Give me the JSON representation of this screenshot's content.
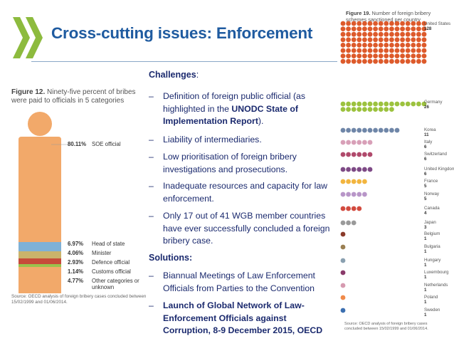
{
  "slide": {
    "title": "Cross-cutting issues: Enforcement"
  },
  "figure12": {
    "label": "Figure 12.",
    "caption": "Ninety-five percent of bribes were paid to officials in 5 categories",
    "categories": [
      {
        "pct": "80.11%",
        "label": "SOE official",
        "color": "#f2a96a"
      },
      {
        "pct": "6.97%",
        "label": "Head of state",
        "color": "#7fb1d6"
      },
      {
        "pct": "4.06%",
        "label": "Minister",
        "color": "#cab36b"
      },
      {
        "pct": "2.93%",
        "label": "Defence official",
        "color": "#c64b3a"
      },
      {
        "pct": "1.14%",
        "label": "Customs official",
        "color": "#9ac24d"
      },
      {
        "pct": "4.77%",
        "label": "Other categories or unknown",
        "color": "#f2a96a"
      }
    ],
    "source": "Source: OECD analysis of foreign bribery cases concluded between 15/02/1999 and 01/06/2014."
  },
  "text": {
    "challenges_heading": "Challenges",
    "challenges_colon": ":",
    "challenges": [
      {
        "before": "Definition of foreign public official (as highlighted in the ",
        "bold": "UNODC State of Implementation Report",
        "after": ")."
      },
      {
        "before": "Liability of intermediaries.",
        "bold": "",
        "after": ""
      },
      {
        "before": "Low prioritisation of foreign bribery investigations and prosecutions.",
        "bold": "",
        "after": ""
      },
      {
        "before": "Inadequate resources and capacity for law enforcement.",
        "bold": "",
        "after": ""
      },
      {
        "before": "Only 17 out of 41 WGB member countries have ever successfully concluded a foreign bribery case.",
        "bold": "",
        "after": ""
      }
    ],
    "solutions_heading": "Solutions:",
    "solutions": [
      {
        "before": "Biannual Meetings of Law Enforcement Officials from Parties to the Convention",
        "bold": "",
        "after": ""
      },
      {
        "before": "",
        "bold": "Launch of Global Network of Law-Enforcement Officials against Corruption, 8-9 December 2015, OECD",
        "after": ""
      }
    ],
    "dash": "–"
  },
  "figure19": {
    "label": "Figure 19.",
    "caption": "Number of foreign bribery schemes sanctioned per country",
    "countries": [
      {
        "name": "United States",
        "count": "128",
        "value": 128,
        "color": "#dd5a2b"
      },
      {
        "name": "Germany",
        "count": "26",
        "value": 26,
        "color": "#9cc23e"
      },
      {
        "name": "Korea",
        "count": "11",
        "value": 11,
        "color": "#6f86a8"
      },
      {
        "name": "Italy",
        "count": "6",
        "value": 6,
        "color": "#d8a0b8"
      },
      {
        "name": "Switzerland",
        "count": "6",
        "value": 6,
        "color": "#b04a6c"
      },
      {
        "name": "United Kingdom",
        "count": "6",
        "value": 6,
        "color": "#7e4a86"
      },
      {
        "name": "France",
        "count": "5",
        "value": 5,
        "color": "#f2b53f"
      },
      {
        "name": "Norway",
        "count": "5",
        "value": 5,
        "color": "#b896c8"
      },
      {
        "name": "Canada",
        "count": "4",
        "value": 4,
        "color": "#d24b3f"
      },
      {
        "name": "Japan",
        "count": "3",
        "value": 3,
        "color": "#9a9a9a"
      },
      {
        "name": "Belgium",
        "count": "1",
        "value": 1,
        "color": "#8a3a2a"
      },
      {
        "name": "Bulgaria",
        "count": "1",
        "value": 1,
        "color": "#9a7f52"
      },
      {
        "name": "Hungary",
        "count": "1",
        "value": 1,
        "color": "#8aa0b0"
      },
      {
        "name": "Luxembourg",
        "count": "1",
        "value": 1,
        "color": "#8a3a6a"
      },
      {
        "name": "Netherlands",
        "count": "1",
        "value": 1,
        "color": "#d69ab0"
      },
      {
        "name": "Poland",
        "count": "1",
        "value": 1,
        "color": "#f08a4a"
      },
      {
        "name": "Sweden",
        "count": "1",
        "value": 1,
        "color": "#3c6fb0"
      }
    ],
    "source": "Source: OECD analysis of foreign bribery cases concluded between 15/02/1999 and 01/06/2014."
  },
  "colors": {
    "title": "#1f5ba0",
    "body_text": "#1b2a6e",
    "chevron": "#8dbb3e",
    "rule": "#8aa8c7"
  }
}
